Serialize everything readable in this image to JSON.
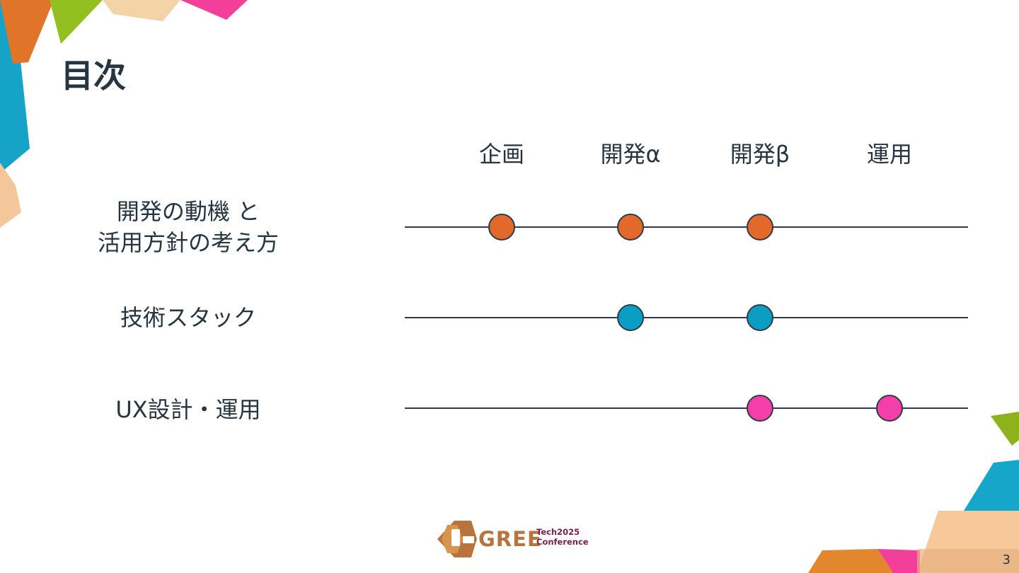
{
  "slide": {
    "title": "目次",
    "page_number": "3"
  },
  "phases": [
    "企画",
    "開発α",
    "開発β",
    "運用"
  ],
  "rows": [
    {
      "label_lines": [
        "開発の動機 と",
        "活用方針の考え方"
      ],
      "active_phases": [
        "企画",
        "開発α",
        "開発β"
      ],
      "color": "#e2692a"
    },
    {
      "label_lines": [
        "技術スタック"
      ],
      "active_phases": [
        "開発α",
        "開発β"
      ],
      "color": "#0a9ec4"
    },
    {
      "label_lines": [
        "UX設計・運用"
      ],
      "active_phases": [
        "開発β",
        "運用"
      ],
      "color": "#f43ea8"
    }
  ],
  "logo": {
    "name": "GREE",
    "tech": "Tech",
    "year": "2025",
    "conference": "Conference",
    "color": "#b8743c"
  },
  "colors": {
    "text": "#263542",
    "line": "#2f3b48",
    "orange": "#e2692a",
    "blue": "#0a9ec4",
    "pink": "#f43ea8",
    "green": "#8fb81e"
  }
}
